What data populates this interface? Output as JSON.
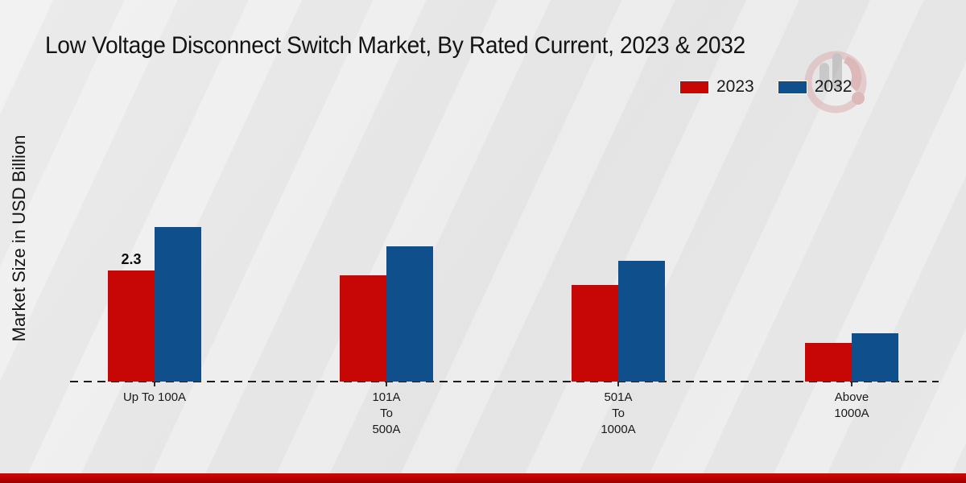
{
  "page": {
    "title": "Low Voltage Disconnect Switch Market, By Rated Current, 2023 & 2032",
    "y_axis_label": "Market Size in USD Billion"
  },
  "legend": {
    "items": [
      {
        "label": "2023",
        "color": "#c70606"
      },
      {
        "label": "2032",
        "color": "#0f4f8c"
      }
    ]
  },
  "chart_data": {
    "type": "bar",
    "title": "Low Voltage Disconnect Switch Market, By Rated Current, 2023 & 2032",
    "xlabel": "",
    "ylabel": "Market Size in USD Billion",
    "unit": "USD Billion",
    "categories": [
      "Up To 100A",
      "101A To 500A",
      "501A To 1000A",
      "Above 1000A"
    ],
    "category_display_lines": [
      [
        "Up To 100A"
      ],
      [
        "101A",
        "To",
        "500A"
      ],
      [
        "501A",
        "To",
        "1000A"
      ],
      [
        "Above",
        "1000A"
      ]
    ],
    "series": [
      {
        "name": "2023",
        "color": "#c70606",
        "values": [
          2.3,
          2.2,
          2.0,
          0.8
        ]
      },
      {
        "name": "2032",
        "color": "#0f4f8c",
        "values": [
          3.2,
          2.8,
          2.5,
          1.0
        ]
      }
    ],
    "annotations": [
      {
        "series": "2023",
        "category": "Up To 100A",
        "text": "2.3"
      }
    ],
    "ylim": [
      0,
      3.5
    ],
    "grid": false,
    "legend_position": "top-right",
    "baseline_style": "dashed"
  }
}
